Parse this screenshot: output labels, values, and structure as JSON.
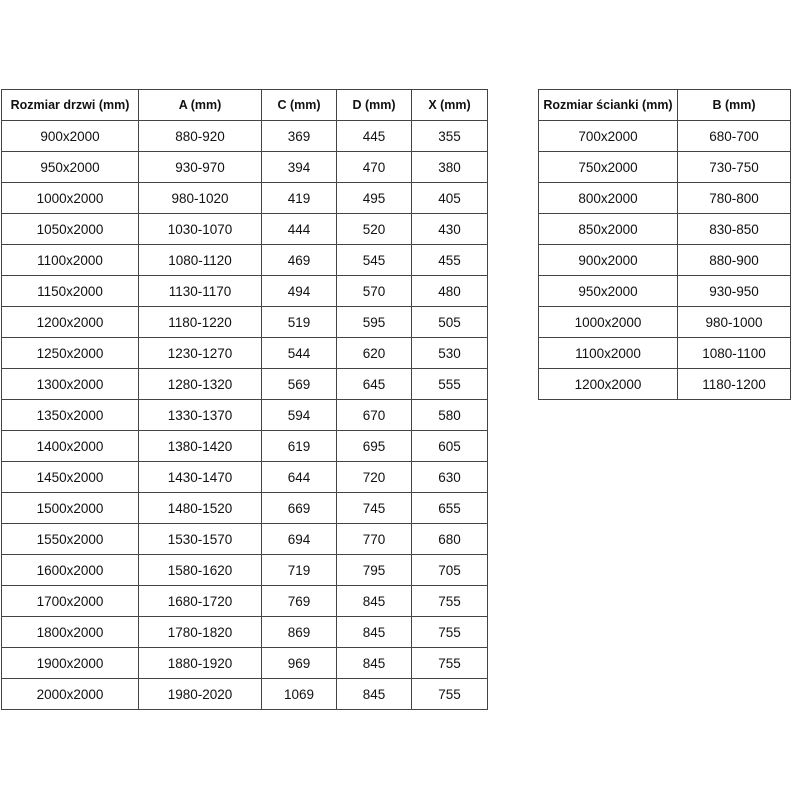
{
  "doors_table": {
    "headers": [
      "Rozmiar drzwi (mm)",
      "A (mm)",
      "C (mm)",
      "D (mm)",
      "X (mm)"
    ],
    "rows": [
      [
        "900x2000",
        "880-920",
        "369",
        "445",
        "355"
      ],
      [
        "950x2000",
        "930-970",
        "394",
        "470",
        "380"
      ],
      [
        "1000x2000",
        "980-1020",
        "419",
        "495",
        "405"
      ],
      [
        "1050x2000",
        "1030-1070",
        "444",
        "520",
        "430"
      ],
      [
        "1100x2000",
        "1080-1120",
        "469",
        "545",
        "455"
      ],
      [
        "1150x2000",
        "1130-1170",
        "494",
        "570",
        "480"
      ],
      [
        "1200x2000",
        "1180-1220",
        "519",
        "595",
        "505"
      ],
      [
        "1250x2000",
        "1230-1270",
        "544",
        "620",
        "530"
      ],
      [
        "1300x2000",
        "1280-1320",
        "569",
        "645",
        "555"
      ],
      [
        "1350x2000",
        "1330-1370",
        "594",
        "670",
        "580"
      ],
      [
        "1400x2000",
        "1380-1420",
        "619",
        "695",
        "605"
      ],
      [
        "1450x2000",
        "1430-1470",
        "644",
        "720",
        "630"
      ],
      [
        "1500x2000",
        "1480-1520",
        "669",
        "745",
        "655"
      ],
      [
        "1550x2000",
        "1530-1570",
        "694",
        "770",
        "680"
      ],
      [
        "1600x2000",
        "1580-1620",
        "719",
        "795",
        "705"
      ],
      [
        "1700x2000",
        "1680-1720",
        "769",
        "845",
        "755"
      ],
      [
        "1800x2000",
        "1780-1820",
        "869",
        "845",
        "755"
      ],
      [
        "1900x2000",
        "1880-1920",
        "969",
        "845",
        "755"
      ],
      [
        "2000x2000",
        "1980-2020",
        "1069",
        "845",
        "755"
      ]
    ]
  },
  "walls_table": {
    "headers": [
      "Rozmiar ścianki (mm)",
      "B (mm)"
    ],
    "rows": [
      [
        "700x2000",
        "680-700"
      ],
      [
        "750x2000",
        "730-750"
      ],
      [
        "800x2000",
        "780-800"
      ],
      [
        "850x2000",
        "830-850"
      ],
      [
        "900x2000",
        "880-900"
      ],
      [
        "950x2000",
        "930-950"
      ],
      [
        "1000x2000",
        "980-1000"
      ],
      [
        "1100x2000",
        "1080-1100"
      ],
      [
        "1200x2000",
        "1180-1200"
      ]
    ]
  }
}
